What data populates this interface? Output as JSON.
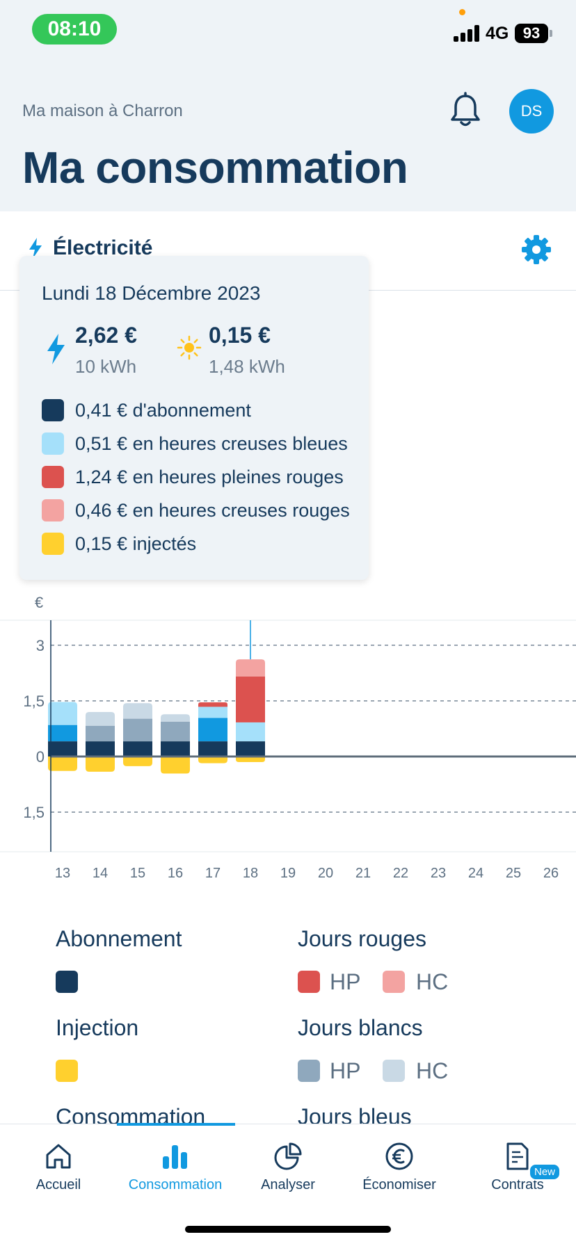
{
  "status_bar": {
    "time": "08:10",
    "network": "4G",
    "battery": "93"
  },
  "header": {
    "location": "Ma maison à Charron",
    "title": "Ma consommation",
    "avatar_initials": "DS",
    "icons": {
      "notifications": "bell-icon"
    }
  },
  "energy": {
    "label": "Électricité",
    "icons": {
      "type": "bolt-icon",
      "settings": "gear-icon"
    }
  },
  "tooltip": {
    "date": "Lundi 18 Décembre 2023",
    "consumption_cost": "2,62 €",
    "consumption_kwh": "10 kWh",
    "injection_cost": "0,15 €",
    "injection_kwh": "1,48 kWh",
    "items": [
      {
        "label": "0,41 € d'abonnement",
        "color": "#163a5c"
      },
      {
        "label": "0,51 € en heures creuses bleues",
        "color": "#a5e0fa"
      },
      {
        "label": "1,24 € en heures pleines rouges",
        "color": "#dc524f"
      },
      {
        "label": "0,46 € en heures creuses rouges",
        "color": "#f3a3a1"
      },
      {
        "label": "0,15 € injectés",
        "color": "#ffd02e"
      }
    ]
  },
  "chart_data": {
    "type": "bar",
    "stacked": true,
    "ylabel": "€",
    "y_tick_labels": [
      "3",
      "1,5",
      "0",
      "1,5"
    ],
    "y_tick_values": [
      3,
      1.5,
      0,
      -1.5
    ],
    "ylim": [
      -2.5,
      3.5
    ],
    "categories": [
      "13",
      "14",
      "15",
      "16",
      "17",
      "18",
      "19",
      "20",
      "21",
      "22",
      "23",
      "24",
      "25",
      "26"
    ],
    "selected_category": "18",
    "colors": {
      "abonnement": "#163a5c",
      "bleu_hp": "#1199e0",
      "bleu_hc": "#a5e0fa",
      "blanc_hp": "#8fa8bd",
      "blanc_hc": "#c9d9e5",
      "rouge_hp": "#dc524f",
      "rouge_hc": "#f3a3a1",
      "injection": "#ffd02e"
    },
    "series": [
      {
        "key": "abonnement",
        "values": [
          0.41,
          0.41,
          0.41,
          0.41,
          0.41,
          0.41,
          0,
          0,
          0,
          0,
          0,
          0,
          0,
          0
        ]
      },
      {
        "key": "bleu_hp",
        "values": [
          0.44,
          0,
          0,
          0,
          0.63,
          0,
          0,
          0,
          0,
          0,
          0,
          0,
          0,
          0
        ]
      },
      {
        "key": "bleu_hc",
        "values": [
          0.62,
          0,
          0,
          0,
          0.3,
          0.51,
          0,
          0,
          0,
          0,
          0,
          0,
          0,
          0
        ]
      },
      {
        "key": "blanc_hp",
        "values": [
          0,
          0.42,
          0.61,
          0.53,
          0,
          0,
          0,
          0,
          0,
          0,
          0,
          0,
          0,
          0
        ]
      },
      {
        "key": "blanc_hc",
        "values": [
          0,
          0.37,
          0.42,
          0.2,
          0,
          0,
          0,
          0,
          0,
          0,
          0,
          0,
          0,
          0
        ]
      },
      {
        "key": "rouge_hp",
        "values": [
          0,
          0,
          0,
          0,
          0.12,
          1.24,
          0,
          0,
          0,
          0,
          0,
          0,
          0,
          0
        ]
      },
      {
        "key": "rouge_hc",
        "values": [
          0,
          0,
          0,
          0,
          0,
          0.46,
          0,
          0,
          0,
          0,
          0,
          0,
          0,
          0
        ]
      },
      {
        "key": "injection",
        "values": [
          -0.39,
          -0.41,
          -0.26,
          -0.46,
          -0.18,
          -0.15,
          0,
          0,
          0,
          0,
          0,
          0,
          0,
          0
        ]
      }
    ]
  },
  "legend": {
    "abonnement": "Abonnement",
    "injection": "Injection",
    "consommation": "Consommation",
    "jours_rouges": "Jours rouges",
    "jours_blancs": "Jours blancs",
    "jours_bleus": "Jours bleus",
    "hp": "HP",
    "hc": "HC"
  },
  "tabs": [
    {
      "label": "Accueil",
      "icon": "home-icon"
    },
    {
      "label": "Consommation",
      "icon": "bar-chart-icon",
      "active": true
    },
    {
      "label": "Analyser",
      "icon": "pie-chart-icon"
    },
    {
      "label": "Économiser",
      "icon": "euro-icon"
    },
    {
      "label": "Contrats",
      "icon": "contract-icon",
      "badge": "New"
    }
  ]
}
